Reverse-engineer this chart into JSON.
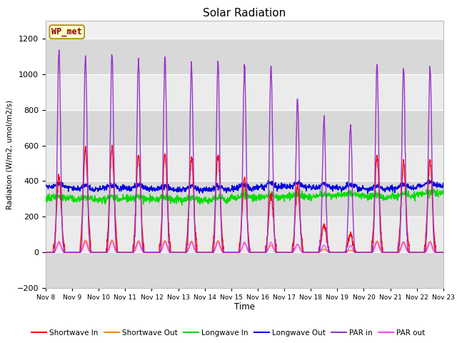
{
  "title": "Solar Radiation",
  "ylabel": "Radiation (W/m2, umol/m2/s)",
  "xlabel": "Time",
  "xlim_days": [
    8,
    23
  ],
  "ylim": [
    -200,
    1300
  ],
  "yticks": [
    -200,
    0,
    200,
    400,
    600,
    800,
    1000,
    1200
  ],
  "xtick_labels": [
    "Nov 8",
    "Nov 9",
    "Nov 10",
    "Nov 11",
    "Nov 12",
    "Nov 13",
    "Nov 14",
    "Nov 15",
    "Nov 16",
    "Nov 17",
    "Nov 18",
    "Nov 19",
    "Nov 20",
    "Nov 21",
    "Nov 22",
    "Nov 23"
  ],
  "watermark": "WP_met",
  "fig_facecolor": "#ffffff",
  "plot_facecolor": "#f0f0f0",
  "series": {
    "shortwave_in": {
      "color": "#ff0000",
      "label": "Shortwave In",
      "lw": 1.0
    },
    "shortwave_out": {
      "color": "#ff8800",
      "label": "Shortwave Out",
      "lw": 1.0
    },
    "longwave_in": {
      "color": "#00dd00",
      "label": "Longwave In",
      "lw": 1.0
    },
    "longwave_out": {
      "color": "#0000dd",
      "label": "Longwave Out",
      "lw": 1.0
    },
    "par_in": {
      "color": "#9933cc",
      "label": "PAR in",
      "lw": 1.0
    },
    "par_out": {
      "color": "#ff44ff",
      "label": "PAR out",
      "lw": 1.0
    }
  }
}
